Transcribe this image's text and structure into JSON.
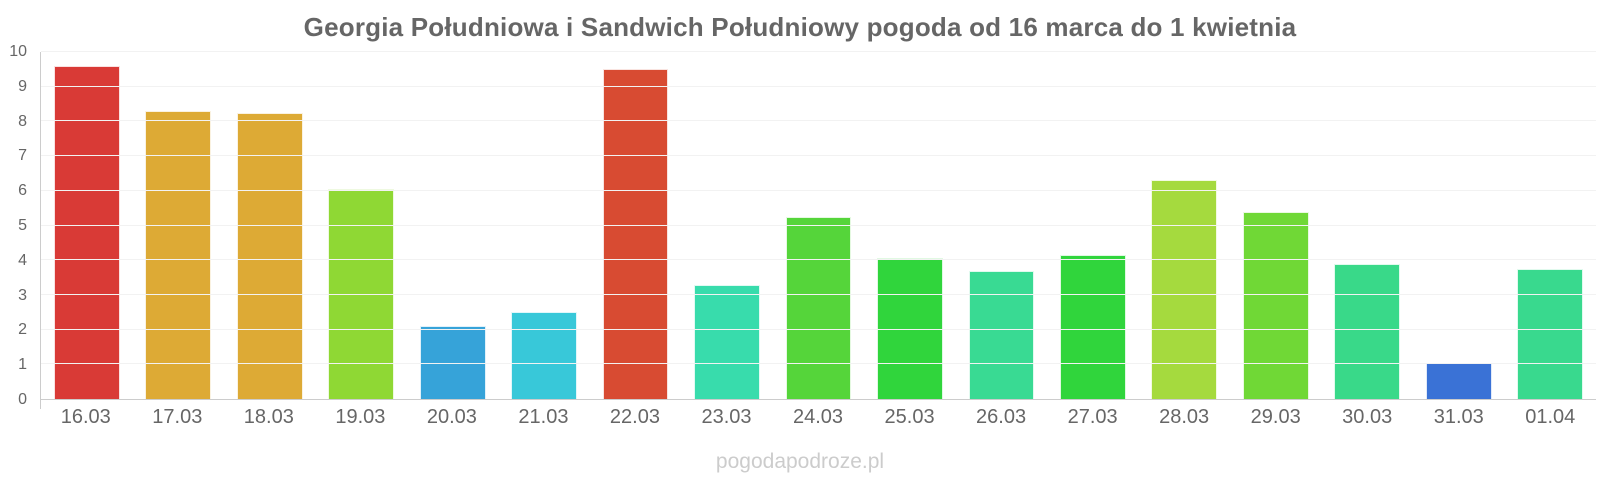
{
  "title": "Georgia Południowa i Sandwich Południowy pogoda od 16 marca do 1 kwietnia",
  "watermark": "pogodapodroze.pl",
  "chart_data": {
    "type": "bar",
    "title": "Georgia Południowa i Sandwich Południowy pogoda od 16 marca do 1 kwietnia",
    "categories": [
      "16.03",
      "17.03",
      "18.03",
      "19.03",
      "20.03",
      "21.03",
      "22.03",
      "23.03",
      "24.03",
      "25.03",
      "26.03",
      "27.03",
      "28.03",
      "29.03",
      "30.03",
      "31.03",
      "01.04"
    ],
    "values": [
      9.6,
      8.3,
      8.25,
      6.05,
      2.1,
      2.5,
      9.5,
      3.3,
      5.25,
      4.05,
      3.7,
      4.15,
      6.3,
      5.4,
      3.9,
      1.05,
      3.75
    ],
    "bar_colors": [
      "#d93a36",
      "#ddaa35",
      "#ddaa35",
      "#8fd834",
      "#36a3d9",
      "#38c8d9",
      "#d84b32",
      "#38dcac",
      "#55d53a",
      "#30d53c",
      "#39da93",
      "#30d53c",
      "#a5da3e",
      "#70d836",
      "#39d989",
      "#3a72d6",
      "#39d98e"
    ],
    "xlabel": "",
    "ylabel": "",
    "ylim": [
      0,
      10
    ],
    "yticks": [
      0,
      1,
      2,
      3,
      4,
      5,
      6,
      7,
      8,
      9,
      10
    ],
    "grid": "horizontal",
    "legend": "none",
    "colors": {
      "axis": "#cccccc",
      "grid": "#f2f2f2",
      "text": "#666666",
      "title_text": "#666666",
      "watermark_text": "#cccccc",
      "background": "#ffffff"
    }
  }
}
